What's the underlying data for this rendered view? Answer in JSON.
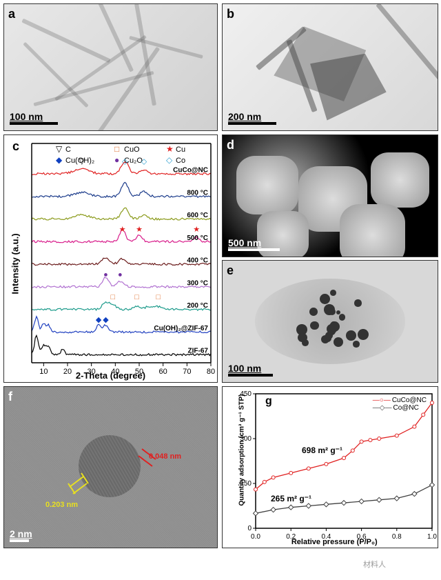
{
  "panels": {
    "a": {
      "label": "a",
      "scale": "100 nm",
      "scale_width": 70
    },
    "b": {
      "label": "b",
      "scale": "200 nm",
      "scale_width": 70
    },
    "c": {
      "label": "c",
      "xlabel": "2-Theta (degree)",
      "ylabel": "Intensity (a.u.)"
    },
    "d": {
      "label": "d",
      "scale": "500 nm",
      "scale_width": 75
    },
    "e": {
      "label": "e",
      "scale": "100 nm",
      "scale_width": 65
    },
    "f": {
      "label": "f",
      "scale": "2 nm",
      "scale_width": 28,
      "d1": "0.203 nm",
      "d2": "0.048 nm"
    },
    "g": {
      "label": "g",
      "xlabel": "Relative pressure (P/P₀)",
      "ylabel": "Quantity adsorption (cm³ g⁻¹ STP)"
    }
  },
  "xrd": {
    "legend": {
      "C": {
        "symbol": "▽",
        "label": "C",
        "color": "#000000"
      },
      "CuOH2": {
        "symbol": "◆",
        "label": "Cu(OH)₂",
        "color": "#1040c0"
      },
      "CuO": {
        "symbol": "□",
        "label": "CuO",
        "color": "#e07030"
      },
      "Cu2O": {
        "symbol": "●",
        "label": "Cu₂O",
        "color": "#7030a0"
      },
      "Cu": {
        "symbol": "★",
        "label": "Cu",
        "color": "#e02020"
      },
      "Co": {
        "symbol": "◇",
        "label": "Co",
        "color": "#30a0d0"
      }
    },
    "traces": [
      {
        "label": "CuCo@NC",
        "color": "#e02020"
      },
      {
        "label": "800 °C",
        "color": "#1a3a8a"
      },
      {
        "label": "600 °C",
        "color": "#8a9a1a"
      },
      {
        "label": "500 °C",
        "color": "#d81b8a"
      },
      {
        "label": "400 °C",
        "color": "#6a1a1a"
      },
      {
        "label": "300 °C",
        "color": "#b070d0"
      },
      {
        "label": "200 °C",
        "color": "#1a9a8a"
      },
      {
        "label": "Cu(OH)₂@ZIF-67",
        "color": "#2040c0"
      },
      {
        "label": "ZIF-67",
        "color": "#000000"
      }
    ],
    "xticks": [
      10,
      20,
      30,
      40,
      50,
      60,
      70,
      80
    ],
    "xlim": [
      5,
      80
    ]
  },
  "isotherm": {
    "series": [
      {
        "label": "CuCo@NC",
        "color": "#e02020",
        "marker": "○",
        "sa": "698 m² g⁻¹"
      },
      {
        "label": "Co@NC",
        "color": "#404040",
        "marker": "◇",
        "sa": "265 m² g⁻¹"
      }
    ],
    "yticks": [
      0,
      150,
      300,
      450
    ],
    "xticks": [
      "0.0",
      "0.2",
      "0.4",
      "0.6",
      "0.8",
      "1.0"
    ],
    "ylim": [
      0,
      450
    ],
    "xlim": [
      0,
      1
    ],
    "data_cuco": [
      [
        0,
        130
      ],
      [
        0.05,
        155
      ],
      [
        0.1,
        170
      ],
      [
        0.2,
        185
      ],
      [
        0.3,
        200
      ],
      [
        0.4,
        215
      ],
      [
        0.5,
        235
      ],
      [
        0.55,
        260
      ],
      [
        0.6,
        290
      ],
      [
        0.65,
        295
      ],
      [
        0.7,
        300
      ],
      [
        0.8,
        310
      ],
      [
        0.9,
        340
      ],
      [
        0.95,
        380
      ],
      [
        1.0,
        420
      ]
    ],
    "data_co": [
      [
        0,
        50
      ],
      [
        0.1,
        62
      ],
      [
        0.2,
        70
      ],
      [
        0.3,
        75
      ],
      [
        0.4,
        80
      ],
      [
        0.5,
        85
      ],
      [
        0.6,
        90
      ],
      [
        0.7,
        95
      ],
      [
        0.8,
        100
      ],
      [
        0.9,
        115
      ],
      [
        1.0,
        145
      ]
    ]
  },
  "watermark": "材料人",
  "colors": {
    "yellow_label": "#e8e020",
    "red_label": "#e02020",
    "scale_black": "#000000",
    "scale_white": "#ffffff"
  }
}
